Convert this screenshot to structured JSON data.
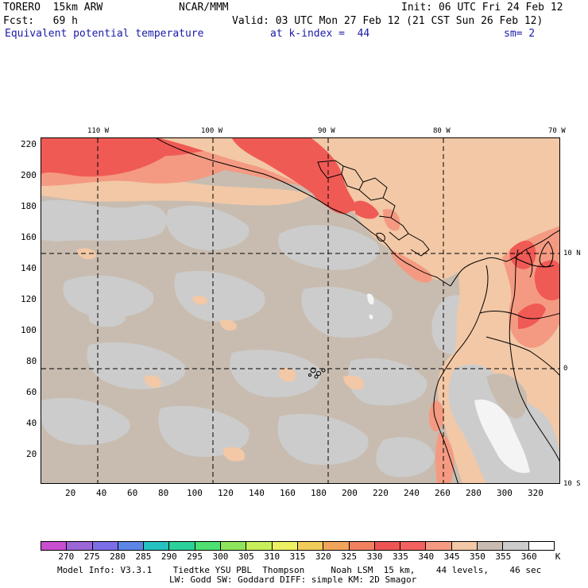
{
  "header": {
    "model": "TORERO  15km ARW",
    "center": "NCAR/MMM",
    "init": "Init: 06 UTC Fri 24 Feb 12",
    "fcst": "Fcst:   69 h",
    "valid": "Valid: 03 UTC Mon 27 Feb 12 (21 CST Sun 26 Feb 12)",
    "field": "Equivalent potential temperature",
    "level": "at k-index =  44",
    "smooth": "sm= 2"
  },
  "axes": {
    "lon_labels": [
      "110 W",
      "100 W",
      "90 W",
      "80 W",
      "70 W"
    ],
    "lat_labels": [
      "10 N",
      "0",
      "10 S"
    ],
    "y_grid_labels": [
      "220",
      "200",
      "180",
      "160",
      "140",
      "120",
      "100",
      "80",
      "60",
      "40",
      "20"
    ],
    "x_grid_labels": [
      "20",
      "40",
      "60",
      "80",
      "100",
      "120",
      "140",
      "160",
      "180",
      "200",
      "220",
      "240",
      "260",
      "280",
      "300",
      "320"
    ]
  },
  "colorbar": {
    "labels": [
      "270",
      "275",
      "280",
      "285",
      "290",
      "295",
      "300",
      "305",
      "310",
      "315",
      "320",
      "325",
      "330",
      "335",
      "340",
      "345",
      "350",
      "355",
      "360"
    ],
    "unit": "K",
    "colors": [
      "#c84fd0",
      "#9b66d6",
      "#7b6ee6",
      "#5b86e6",
      "#25c0c0",
      "#2bd09a",
      "#4ee070",
      "#8ee45a",
      "#c8ee5a",
      "#eef064",
      "#f2cc5a",
      "#f2a45a",
      "#f08060",
      "#ee5454",
      "#f26060",
      "#f49a82",
      "#f2c8a6",
      "#c8bcb0",
      "#cccccc",
      "#ffffff"
    ]
  },
  "footer": {
    "line1": "Model Info: V3.3.1    Tiedtke YSU PBL  Thompson     Noah LSM  15 km,    44 levels,    46 sec",
    "line2": "LW: Godd SW: Goddard DIFF: simple KM: 2D Smagor"
  },
  "field_colors": {
    "background": "#c8bcb0",
    "gray": "#cccccc",
    "light": "#f2c8a6",
    "salmon": "#f49a82",
    "red": "#f05a55",
    "white": "#f4f4f4"
  }
}
